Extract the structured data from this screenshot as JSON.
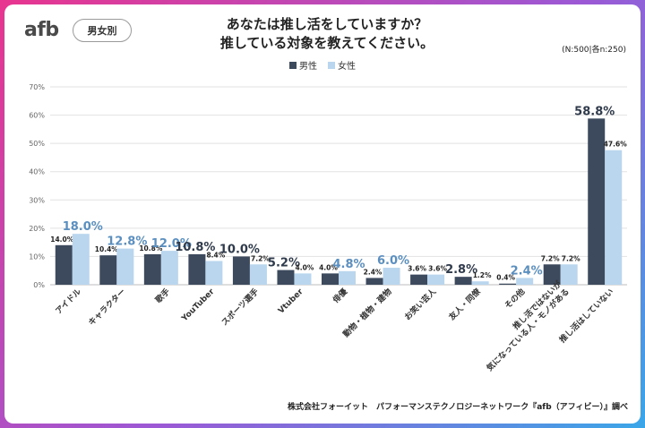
{
  "header": {
    "logo_text": "afb",
    "tag_label": "男女別",
    "title_line1": "あなたは推し活をしていますか？",
    "title_line2": "推している対象を教えてください。",
    "sample_note": "(N:500|各n:250)"
  },
  "footer": {
    "credit": "株式会社フォーイット　パフォーマンステクノロジーネットワーク『afb（アフィビー）』調べ"
  },
  "colors": {
    "male": "#3d4a5e",
    "female": "#b9d6ee",
    "highlight_label": "#5b8fc0",
    "brand": "#e8358f"
  },
  "chart_data": {
    "type": "bar",
    "title": "あなたは推し活をしていますか？推している対象を教えてください。",
    "xlabel": "",
    "ylabel": "",
    "ylim": [
      0,
      70
    ],
    "yticks": [
      "0%",
      "10%",
      "20%",
      "30%",
      "40%",
      "50%",
      "60%",
      "70%"
    ],
    "categories": [
      "アイドル",
      "キャラクター",
      "歌手",
      "YouTuber",
      "スポーツ選手",
      "Vtuber",
      "俳優",
      "動物・植物・建物",
      "お笑い芸人",
      "友人・同僚",
      "その他",
      "推し活ではないが気になっている人・モノがある",
      "推し活はしていない"
    ],
    "category_lines": [
      [
        "アイドル"
      ],
      [
        "キャラクター"
      ],
      [
        "歌手"
      ],
      [
        "YouTuber"
      ],
      [
        "スポーツ選手"
      ],
      [
        "Vtuber"
      ],
      [
        "俳優"
      ],
      [
        "動物・植物・建物"
      ],
      [
        "お笑い芸人"
      ],
      [
        "友人・同僚"
      ],
      [
        "その他"
      ],
      [
        "推し活ではないが",
        "気になっている人・モノがある"
      ],
      [
        "推し活はしていない"
      ]
    ],
    "series": [
      {
        "name": "男性",
        "values": [
          14.0,
          10.4,
          10.8,
          10.8,
          10.0,
          5.2,
          4.0,
          2.4,
          3.6,
          2.8,
          0.4,
          7.2,
          58.8
        ],
        "labels": [
          "14.0%",
          "10.4%",
          "10.8%",
          "10.8%",
          "10.0%",
          "5.2%",
          "4.0%",
          "2.4%",
          "3.6%",
          "2.8%",
          "0.4%",
          "7.2%",
          "58.8%"
        ],
        "highlight": [
          false,
          false,
          false,
          true,
          true,
          true,
          false,
          false,
          false,
          true,
          false,
          false,
          true
        ]
      },
      {
        "name": "女性",
        "values": [
          18.0,
          12.8,
          12.0,
          8.4,
          7.2,
          4.0,
          4.8,
          6.0,
          3.6,
          1.2,
          2.4,
          7.2,
          47.6
        ],
        "labels": [
          "18.0%",
          "12.8%",
          "12.0%",
          "8.4%",
          "7.2%",
          "4.0%",
          "4.8%",
          "6.0%",
          "3.6%",
          "1.2%",
          "2.4%",
          "7.2%",
          "47.6%"
        ],
        "highlight": [
          true,
          true,
          true,
          false,
          false,
          false,
          true,
          true,
          false,
          false,
          true,
          false,
          false
        ]
      }
    ],
    "legend": "top-center",
    "grid": true
  }
}
